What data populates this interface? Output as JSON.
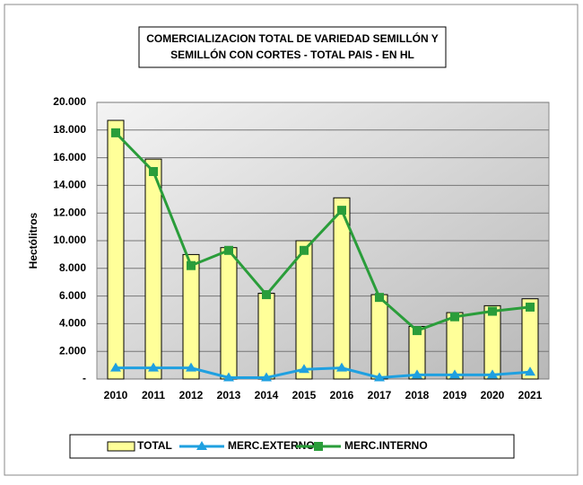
{
  "chart_data": {
    "type": "bar",
    "title": [
      "COMERCIALIZACION TOTAL DE VARIEDAD SEMILLÓN Y",
      "SEMILLÓN CON CORTES - TOTAL PAIS - EN HL"
    ],
    "y_label": "Hectólitros",
    "categories": [
      "2010",
      "2011",
      "2012",
      "2013",
      "2014",
      "2015",
      "2016",
      "2017",
      "2018",
      "2019",
      "2020",
      "2021"
    ],
    "series": [
      {
        "name": "TOTAL",
        "type": "bar",
        "color": "#ffff99",
        "values": [
          18700,
          15900,
          9000,
          9500,
          6200,
          10000,
          13100,
          6100,
          3800,
          4800,
          5300,
          5800
        ]
      },
      {
        "name": "MERC.EXTERNO",
        "type": "line",
        "marker": "triangle",
        "color": "#1fa0e0",
        "values": [
          800,
          800,
          800,
          100,
          100,
          700,
          800,
          100,
          300,
          300,
          300,
          500
        ]
      },
      {
        "name": "MERC.INTERNO",
        "type": "line",
        "marker": "square",
        "color": "#2a9d3a",
        "values": [
          17800,
          15000,
          8200,
          9300,
          6100,
          9300,
          12200,
          5900,
          3500,
          4500,
          4900,
          5200
        ]
      }
    ],
    "ylim": [
      0,
      20000
    ],
    "yticks": [
      {
        "value": 0,
        "label": "-"
      },
      {
        "value": 2000,
        "label": "2.000"
      },
      {
        "value": 4000,
        "label": "4.000"
      },
      {
        "value": 6000,
        "label": "6.000"
      },
      {
        "value": 8000,
        "label": "8.000"
      },
      {
        "value": 10000,
        "label": "10.000"
      },
      {
        "value": 12000,
        "label": "12.000"
      },
      {
        "value": 14000,
        "label": "14.000"
      },
      {
        "value": 16000,
        "label": "16.000"
      },
      {
        "value": 18000,
        "label": "18.000"
      },
      {
        "value": 20000,
        "label": "20.000"
      }
    ],
    "grid": true
  }
}
